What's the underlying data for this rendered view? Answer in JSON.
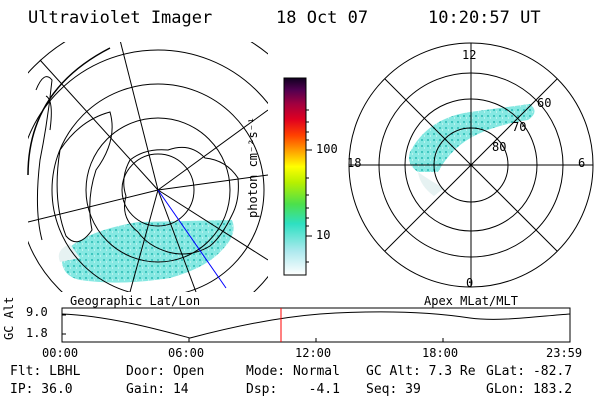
{
  "header": {
    "instrument": "Ultraviolet Imager",
    "date": "18 Oct 07",
    "time": "10:20:57 UT"
  },
  "colorbar": {
    "unit_label": "photon cm⁻²s⁻¹",
    "ticks": [
      "100",
      "10"
    ]
  },
  "geo_panel": {
    "caption": "Geographic Lat/Lon"
  },
  "apex_panel": {
    "caption": "Apex MLat/MLT",
    "mlt_labels": [
      "12",
      "18",
      "6",
      "0"
    ],
    "lat_labels": [
      "60",
      "70",
      "80"
    ]
  },
  "orbit_plot": {
    "ylabel": "GC Alt",
    "y_ticks": [
      "9.0",
      "1.8"
    ],
    "x_ticks": [
      "00:00",
      "06:00",
      "12:00",
      "18:00",
      "23:59"
    ],
    "current_time_marker": "10:20:57"
  },
  "status": {
    "flt": "Flt: LBHL",
    "ip": "IP: 36.0",
    "door": "Door: Open",
    "gain": "Gain: 14",
    "mode": "Mode: Normal",
    "dsp": "Dsp:    -4.1",
    "gc_alt": "GC Alt: 7.3 Re",
    "seq": "Seq: 39",
    "glat": "GLat: -82.7",
    "glon": "GLon: 183.2"
  },
  "colors": {
    "aurora_fill": "#7fe6e0",
    "aurora_dots": "#3fc6bf",
    "time_marker": "#ff0000",
    "meridian_line": "#0000ff"
  }
}
